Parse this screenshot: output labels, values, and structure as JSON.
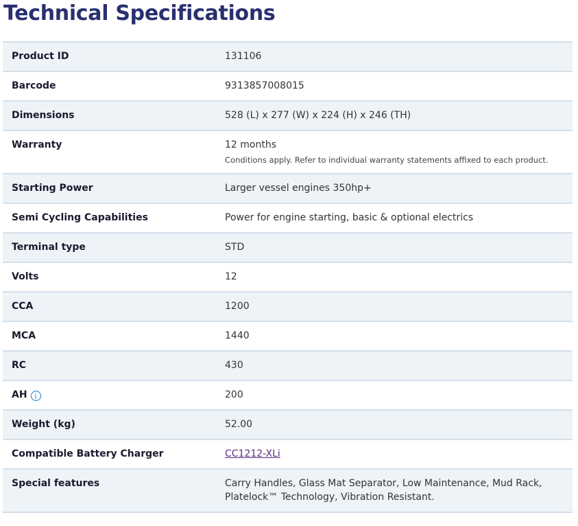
{
  "title": "Technical Specifications",
  "rows": [
    {
      "label": "Product ID",
      "value": "131106"
    },
    {
      "label": "Barcode",
      "value": "9313857008015"
    },
    {
      "label": "Dimensions",
      "value": "528 (L) x 277 (W) x 224 (H) x 246 (TH)"
    },
    {
      "label": "Warranty",
      "value": "12 months",
      "note": "Conditions apply. Refer to individual warranty statements affixed to each product."
    },
    {
      "label": "Starting Power",
      "value": "Larger vessel engines 350hp+"
    },
    {
      "label": "Semi Cycling Capabilities",
      "value": "Power for engine starting, basic & optional electrics"
    },
    {
      "label": "Terminal type",
      "value": "STD"
    },
    {
      "label": "Volts",
      "value": "12"
    },
    {
      "label": "CCA",
      "value": "1200"
    },
    {
      "label": "MCA",
      "value": "1440"
    },
    {
      "label": "RC",
      "value": "430"
    },
    {
      "label": "AH",
      "value": "200",
      "icon": "info-icon",
      "icon_glyph": "i"
    },
    {
      "label": "Weight (kg)",
      "value": "52.00"
    },
    {
      "label": "Compatible Battery Charger",
      "value": "CC1212-XLi"
    },
    {
      "label": "Special features",
      "value": "Carry Handles, Glass Mat Separator, Low Maintenance, Mud Rack, Platelock™ Technology, Vibration Resistant."
    }
  ]
}
